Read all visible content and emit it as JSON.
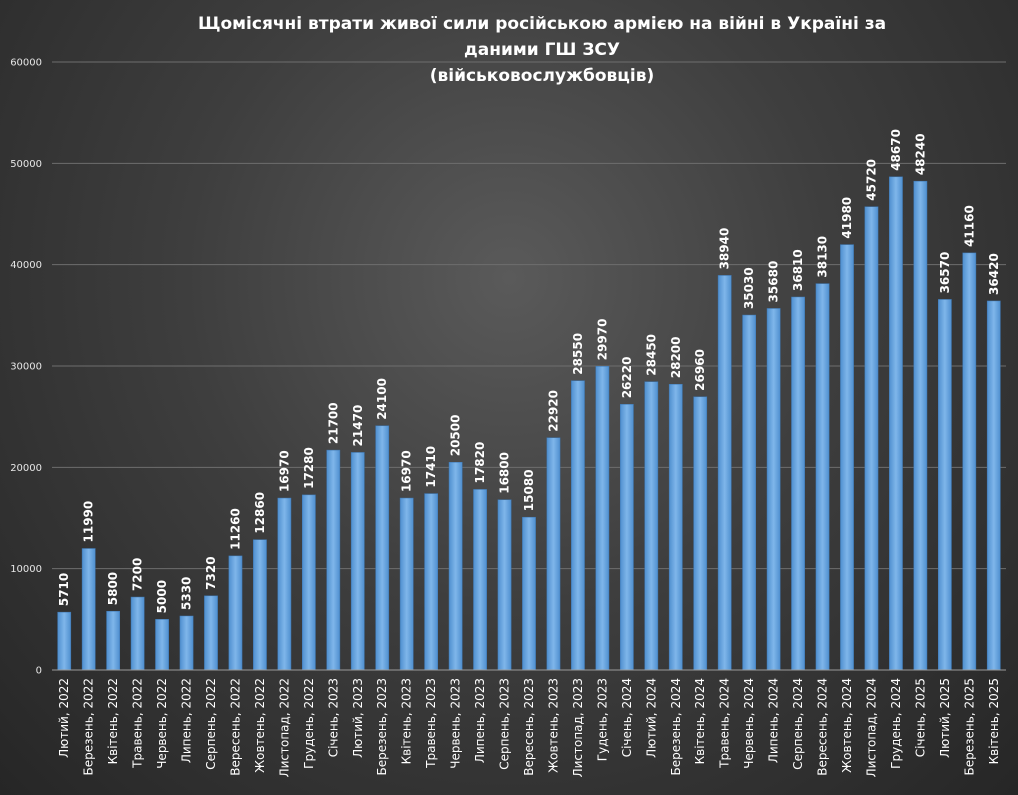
{
  "chart_data": {
    "type": "bar",
    "title_lines": [
      "Щомісячні  втрати живої сили російською  армією  на війні  в Україні  за",
      "даними  ГШ ЗСУ",
      "(військовослужбовців)"
    ],
    "xlabel": "",
    "ylabel": "",
    "ylim": [
      0,
      60000
    ],
    "yticks": [
      0,
      10000,
      20000,
      30000,
      40000,
      50000,
      60000
    ],
    "grid": true,
    "bar_color": "#5b9bd5",
    "categories": [
      "Лютий, 2022",
      "Березень, 2022",
      "Квітень, 2022",
      "Травень, 2022",
      "Червень, 2022",
      "Липень, 2022",
      "Серпень, 2022",
      "Вересень, 2022",
      "Жовтень, 2022",
      "Листопад, 2022",
      "Грудень, 2022",
      "Січень, 2023",
      "Лютий, 2023",
      "Березень, 2023",
      "Квітень, 2023",
      "Травень, 2023",
      "Червень, 2023",
      "Липень, 2023",
      "Серпень, 2023",
      "Вересень, 2023",
      "Жовтень, 2023",
      "Листопад, 2023",
      "Гудень, 2023",
      "Січень, 2024",
      "Лютий, 2024",
      "Березень, 2024",
      "Квітень, 2024",
      "Травень, 2024",
      "Червень, 2024",
      "Липень, 2024",
      "Серпень, 2024",
      "Вересень, 2024",
      "Жовтень, 2024",
      "Листопад, 2024",
      "Грудень, 2024",
      "Січень, 2025",
      "Лютий, 2025",
      "Березень, 2025",
      "Квітень, 2025"
    ],
    "values": [
      5710,
      11990,
      5800,
      7200,
      5000,
      5330,
      7320,
      11260,
      12860,
      16970,
      17280,
      21700,
      21470,
      24100,
      16970,
      17410,
      20500,
      17820,
      16800,
      15080,
      22920,
      28550,
      29970,
      26220,
      28450,
      28200,
      26960,
      38940,
      35030,
      35680,
      36810,
      38130,
      41980,
      45720,
      48670,
      48240,
      36570,
      41160,
      36420
    ]
  }
}
